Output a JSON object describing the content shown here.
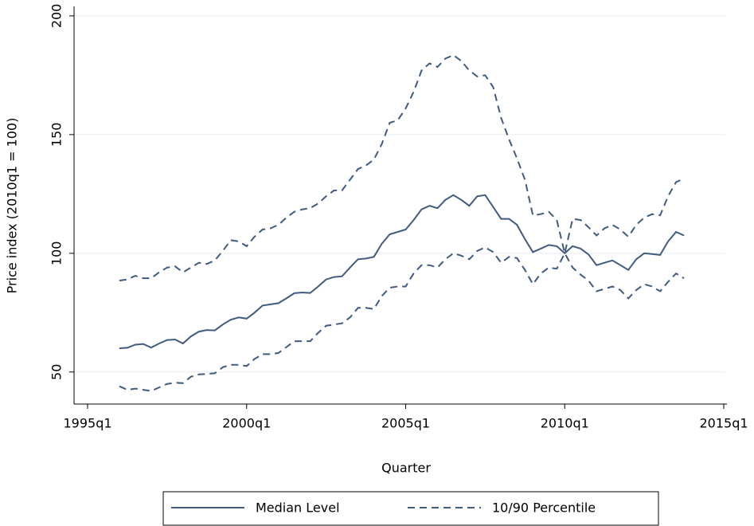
{
  "chart_data": {
    "type": "line",
    "x_label": "Quarter",
    "y_label": "Price index (2010q1 = 100)",
    "x": [
      "1996q1",
      "1996q2",
      "1996q3",
      "1996q4",
      "1997q1",
      "1997q2",
      "1997q3",
      "1997q4",
      "1998q1",
      "1998q2",
      "1998q3",
      "1998q4",
      "1999q1",
      "1999q2",
      "1999q3",
      "1999q4",
      "2000q1",
      "2000q2",
      "2000q3",
      "2000q4",
      "2001q1",
      "2001q2",
      "2001q3",
      "2001q4",
      "2002q1",
      "2002q2",
      "2002q3",
      "2002q4",
      "2003q1",
      "2003q2",
      "2003q3",
      "2003q4",
      "2004q1",
      "2004q2",
      "2004q3",
      "2004q4",
      "2005q1",
      "2005q2",
      "2005q3",
      "2005q4",
      "2006q1",
      "2006q2",
      "2006q3",
      "2006q4",
      "2007q1",
      "2007q2",
      "2007q3",
      "2007q4",
      "2008q1",
      "2008q2",
      "2008q3",
      "2008q4",
      "2009q1",
      "2009q2",
      "2009q3",
      "2009q4",
      "2010q1",
      "2010q2",
      "2010q3",
      "2010q4",
      "2011q1",
      "2011q2",
      "2011q3",
      "2011q4",
      "2012q1",
      "2012q2",
      "2012q3",
      "2012q4",
      "2013q1",
      "2013q2",
      "2013q3",
      "2013q4"
    ],
    "series": [
      {
        "name": "Median Level",
        "color": "#3f5b80",
        "dash": "solid",
        "values": [
          60,
          60.2,
          61.5,
          61.8,
          60.3,
          62,
          63.5,
          63.7,
          62,
          65,
          67,
          67.7,
          67.5,
          70,
          72,
          73,
          72.5,
          75,
          78,
          78.5,
          79,
          81,
          83.2,
          83.5,
          83.3,
          86,
          89,
          90,
          90.3,
          94,
          97.5,
          97.8,
          98.5,
          104,
          108,
          109,
          110,
          114,
          118.5,
          120,
          119,
          122.5,
          124.5,
          122.5,
          120,
          124,
          124.5,
          119.5,
          114.5,
          114.5,
          112,
          106,
          100.5,
          102,
          103.5,
          103,
          100,
          103,
          102,
          99.5,
          95,
          96,
          97,
          95,
          93,
          97.5,
          100,
          99.7,
          99.3,
          105,
          109,
          107.5
        ]
      },
      {
        "name": "10/90 Percentile",
        "color": "#3f5b80",
        "dash": "dashed",
        "values": [
          88.5,
          89,
          90.5,
          89.5,
          89.5,
          92,
          94,
          94.5,
          92,
          94,
          96,
          95.5,
          97,
          101,
          105.5,
          105,
          103,
          107,
          110,
          110.5,
          112,
          115,
          117.5,
          118.5,
          119,
          121,
          124,
          126.5,
          126.5,
          131,
          135.5,
          137,
          139.5,
          146,
          155,
          156,
          161,
          168,
          177,
          180,
          178.5,
          182,
          183.5,
          181,
          177,
          174.5,
          175,
          170,
          157,
          148,
          140,
          131,
          116,
          116.5,
          117.5,
          114,
          100,
          114.5,
          114,
          111,
          107.5,
          110.5,
          112,
          110,
          107,
          112,
          115,
          116.5,
          116,
          124,
          130,
          131.5
        ],
        "low_values": [
          44,
          42.5,
          43,
          42.5,
          42,
          43.5,
          45,
          45.5,
          45.3,
          48,
          49,
          49.2,
          49.5,
          52,
          53,
          53,
          52.5,
          55.5,
          57.5,
          57.5,
          58,
          60.5,
          63,
          63,
          63,
          66.5,
          69.5,
          70,
          70.5,
          73,
          77,
          77,
          76.5,
          82,
          85.5,
          86,
          86,
          91.5,
          95,
          95,
          94,
          97.5,
          100,
          99,
          97.5,
          101,
          102.5,
          100.5,
          96,
          98.5,
          98,
          93,
          87,
          91.5,
          94,
          93.5,
          100,
          94,
          91,
          88.5,
          84,
          85,
          86,
          84.5,
          81,
          84.5,
          87,
          86,
          84,
          88,
          91.5,
          89.5
        ]
      }
    ],
    "xlim": [
      "1995q1",
      "2015q1"
    ],
    "xticks": [
      "1995q1",
      "2000q1",
      "2005q1",
      "2010q1",
      "2015q1"
    ],
    "ylim": [
      36.5,
      204
    ],
    "yticks": [
      50,
      100,
      150,
      200
    ],
    "grid": true,
    "legend_position": "bottom"
  }
}
